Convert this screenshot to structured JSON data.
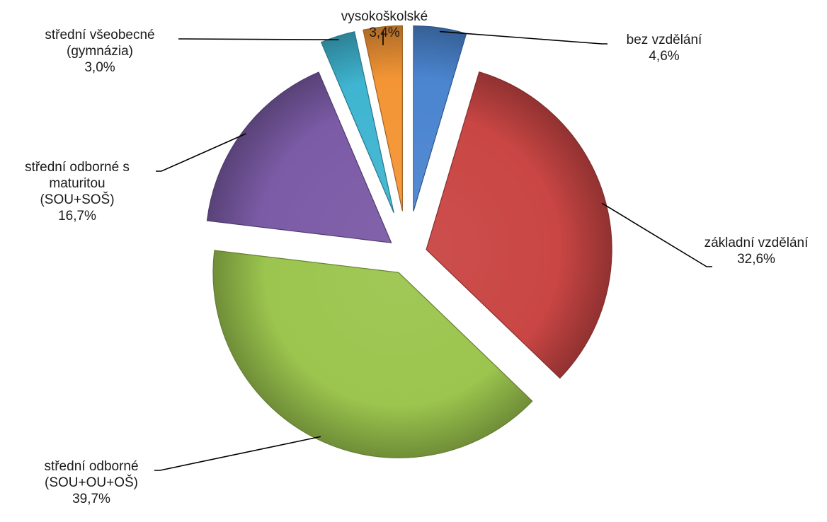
{
  "chart_data": {
    "type": "pie",
    "style": "exploded 3d-shaded",
    "unit": "%",
    "title": "",
    "legend": "none",
    "slices": [
      {
        "label_lines": [
          "bez vzdělání"
        ],
        "value": 4.6,
        "value_label": "4,6%",
        "color": "#4b85d0"
      },
      {
        "label_lines": [
          "základní vzdělání"
        ],
        "value": 32.6,
        "value_label": "32,6%",
        "color": "#c94644"
      },
      {
        "label_lines": [
          "střední odborné",
          "(SOU+OU+OŠ)"
        ],
        "value": 39.7,
        "value_label": "39,7%",
        "color": "#9bc54e"
      },
      {
        "label_lines": [
          "střední odborné s",
          "maturitou",
          "(SOU+SOŠ)"
        ],
        "value": 16.7,
        "value_label": "16,7%",
        "color": "#7b5ba6"
      },
      {
        "label_lines": [
          "střední všeobecné",
          "(gymnázia)"
        ],
        "value": 3.0,
        "value_label": "3,0%",
        "color": "#3fb5d1"
      },
      {
        "label_lines": [
          "vysokoškolské"
        ],
        "value": 3.4,
        "value_label": "3,4%",
        "color": "#f39535"
      }
    ]
  }
}
